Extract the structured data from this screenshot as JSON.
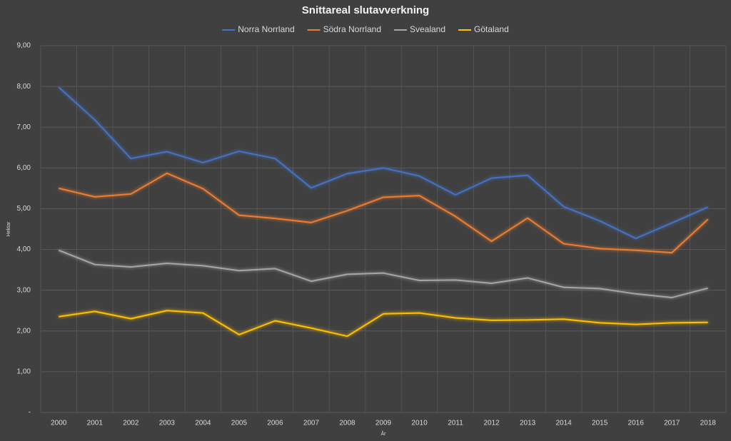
{
  "chart_data": {
    "type": "line",
    "title": "Snittareal slutavverkning",
    "x_label": "År",
    "y_label": "Hektar",
    "categories": [
      "2000",
      "2001",
      "2002",
      "2003",
      "2004",
      "2005",
      "2006",
      "2007",
      "2008",
      "2009",
      "2010",
      "2011",
      "2012",
      "2013",
      "2014",
      "2015",
      "2016",
      "2017",
      "2018"
    ],
    "series": [
      {
        "name": "Norra Norrland",
        "color": "#4472c4",
        "values": [
          7.98,
          7.18,
          6.23,
          6.4,
          6.13,
          6.41,
          6.23,
          5.51,
          5.86,
          6.0,
          5.8,
          5.34,
          5.75,
          5.82,
          5.05,
          4.7,
          4.27,
          4.65,
          5.04
        ]
      },
      {
        "name": "Södra Norrland",
        "color": "#ed7d31",
        "values": [
          5.5,
          5.29,
          5.36,
          5.87,
          5.49,
          4.84,
          4.76,
          4.66,
          4.95,
          5.28,
          5.32,
          4.81,
          4.2,
          4.77,
          4.14,
          4.02,
          3.98,
          3.92,
          4.74
        ]
      },
      {
        "name": "Svealand",
        "color": "#a5a5a5",
        "values": [
          3.98,
          3.63,
          3.57,
          3.66,
          3.6,
          3.48,
          3.53,
          3.22,
          3.39,
          3.42,
          3.24,
          3.25,
          3.17,
          3.3,
          3.07,
          3.04,
          2.91,
          2.82,
          3.05
        ]
      },
      {
        "name": "Götaland",
        "color": "#ffc000",
        "values": [
          2.35,
          2.48,
          2.3,
          2.5,
          2.44,
          1.91,
          2.25,
          2.07,
          1.87,
          2.42,
          2.44,
          2.32,
          2.26,
          2.27,
          2.29,
          2.2,
          2.16,
          2.2,
          2.21
        ]
      }
    ],
    "ylim": [
      0,
      9
    ],
    "yticks": [
      {
        "value": 0,
        "label": "-"
      },
      {
        "value": 1,
        "label": "1,00"
      },
      {
        "value": 2,
        "label": "2,00"
      },
      {
        "value": 3,
        "label": "3,00"
      },
      {
        "value": 4,
        "label": "4,00"
      },
      {
        "value": 5,
        "label": "5,00"
      },
      {
        "value": 6,
        "label": "6,00"
      },
      {
        "value": 7,
        "label": "7,00"
      },
      {
        "value": 8,
        "label": "8,00"
      },
      {
        "value": 9,
        "label": "9,00"
      }
    ],
    "grid": true,
    "legend": "top"
  }
}
